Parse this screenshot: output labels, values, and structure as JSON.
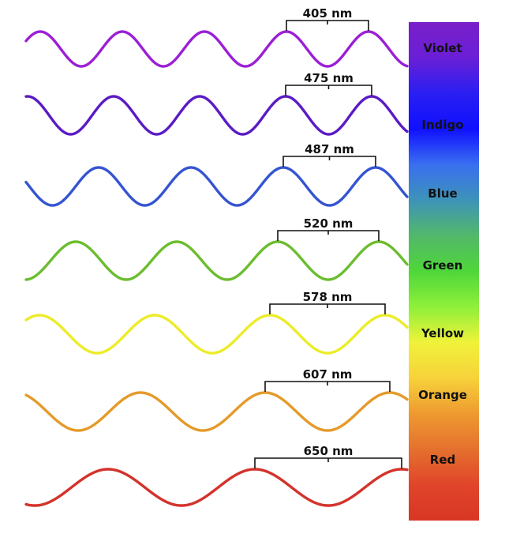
{
  "title": "",
  "spectrum_colors": [
    "#7a1fc9",
    "#6a1fd6",
    "#2a1ff2",
    "#1010ff",
    "#3a6ff0",
    "#3d93b8",
    "#52b86a",
    "#4fd63a",
    "#8ef03a",
    "#f0f23a",
    "#f7d23a",
    "#ee9a30",
    "#e5702e",
    "#e0452a",
    "#d83624"
  ],
  "waves": [
    {
      "color_name": "Violet",
      "wavelength": "405 nm",
      "color": "#9b1fd6"
    },
    {
      "color_name": "Indigo",
      "wavelength": "475 nm",
      "color": "#5a1bc4"
    },
    {
      "color_name": "Blue",
      "wavelength": "487 nm",
      "color": "#3554d1"
    },
    {
      "color_name": "Green",
      "wavelength": "520 nm",
      "color": "#6bbd2e"
    },
    {
      "color_name": "Yellow",
      "wavelength": "578 nm",
      "color": "#ecec2a"
    },
    {
      "color_name": "Orange",
      "wavelength": "607 nm",
      "color": "#e59a2a"
    },
    {
      "color_name": "Red",
      "wavelength": "650 nm",
      "color": "#d4322c"
    }
  ]
}
